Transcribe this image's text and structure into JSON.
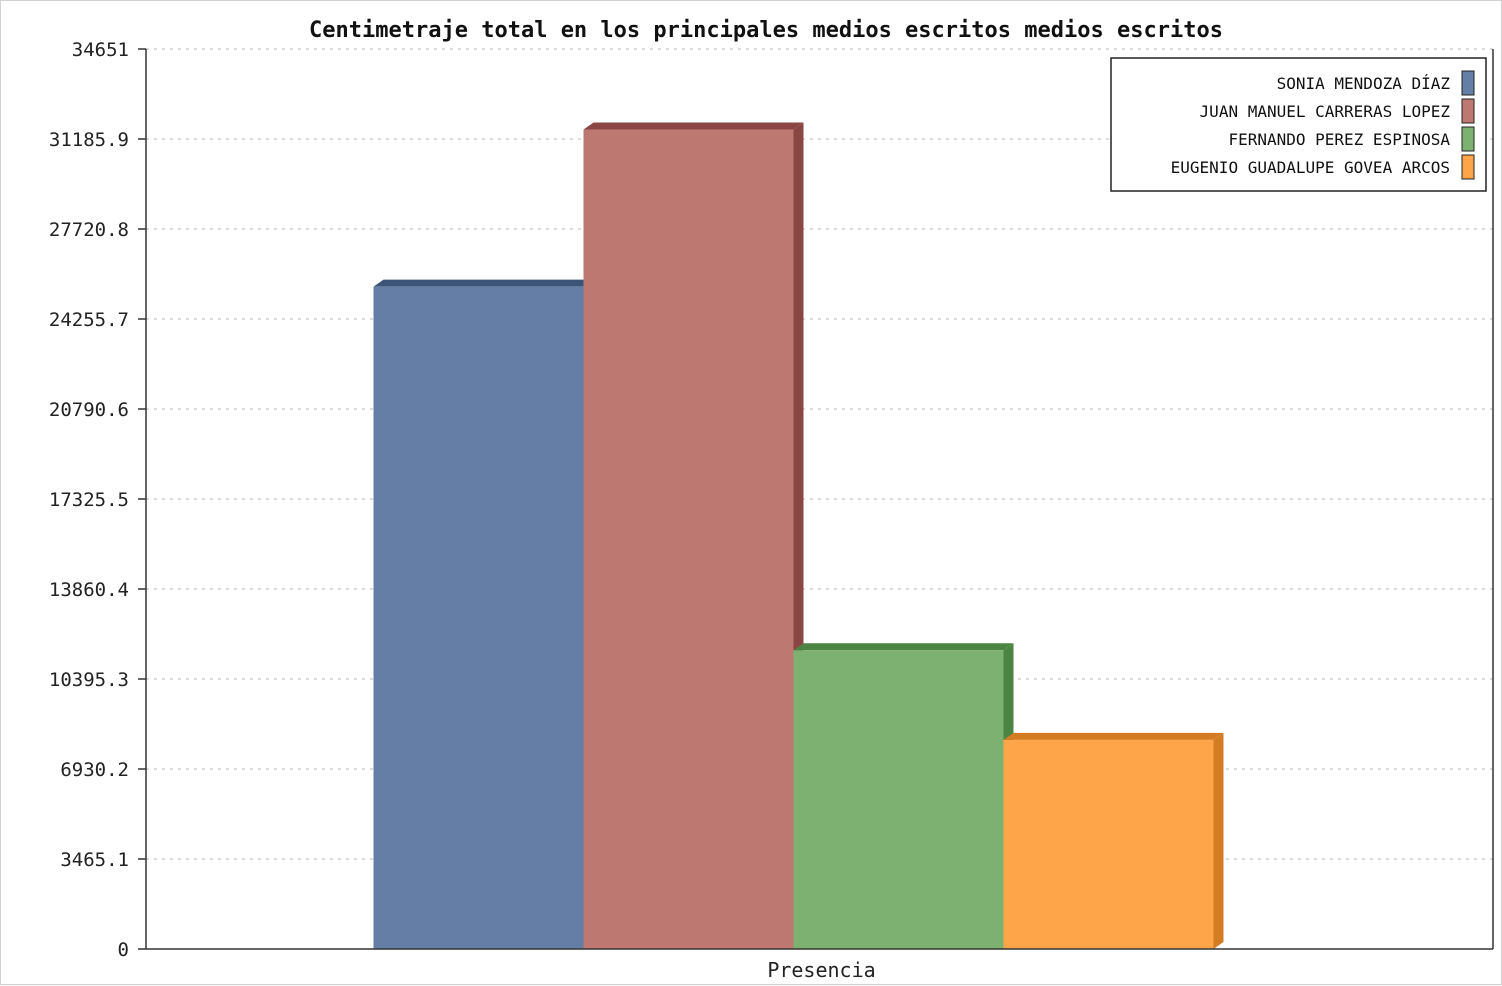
{
  "chart_data": {
    "type": "bar",
    "title": "Centimetraje total en los principales medios escritos medios escritos",
    "categories": [
      "Presencia"
    ],
    "series": [
      {
        "name": "SONIA MENDOZA DÍAZ",
        "values": [
          25500
        ],
        "color": "#647ea5",
        "shade": "#3d5479"
      },
      {
        "name": "JUAN MANUEL CARRERAS LOPEZ",
        "values": [
          31550
        ],
        "color": "#bd7871",
        "shade": "#8a4643"
      },
      {
        "name": "FERNANDO PEREZ ESPINOSA",
        "values": [
          11500
        ],
        "color": "#7db172",
        "shade": "#4c8443"
      },
      {
        "name": "EUGENIO GUADALUPE GOVEA ARCOS",
        "values": [
          8050
        ],
        "color": "#fea54a",
        "shade": "#d47c23"
      }
    ],
    "yticks": [
      "0",
      "3465.1",
      "6930.2",
      "10395.3",
      "13860.4",
      "17325.5",
      "20790.6",
      "24255.7",
      "27720.8",
      "31185.9",
      "34651"
    ],
    "ylim": [
      0,
      34651
    ],
    "grid": true,
    "legend_position": "top-right"
  }
}
